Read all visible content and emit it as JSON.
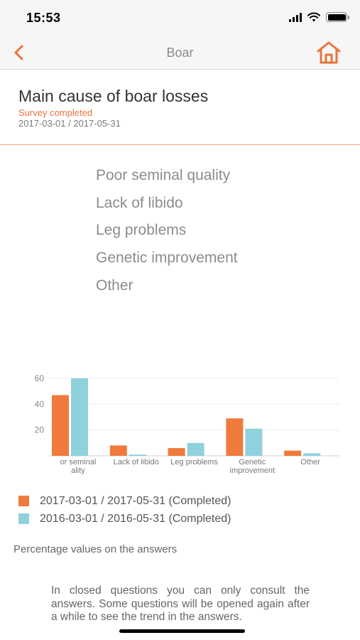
{
  "status_bar": {
    "time": "15:53",
    "battery_level": 1.0
  },
  "nav": {
    "title": "Boar",
    "back_icon": "chevron-left-icon",
    "home_icon": "home-icon"
  },
  "header": {
    "title": "Main cause of boar losses",
    "status": "Survey completed",
    "date_range": "2017-03-01 / 2017-05-31"
  },
  "answers": [
    "Poor seminal quality",
    "Lack of libido",
    "Leg problems",
    "Genetic improvement",
    "Other"
  ],
  "chart_data": {
    "type": "bar",
    "categories": [
      "Poor seminal quality",
      "Lack of libido",
      "Leg problems",
      "Genetic improvement",
      "Other"
    ],
    "tick_labels": [
      [
        "or seminal",
        "ality"
      ],
      [
        "Lack of libido"
      ],
      [
        "Leg problems"
      ],
      [
        "Genetic",
        "improvement"
      ],
      [
        "Other"
      ]
    ],
    "series": [
      {
        "name": "2017-03-01 / 2017-05-31 (Completed)",
        "color": "#ef7a3c",
        "values": [
          47,
          8,
          6,
          29,
          4
        ]
      },
      {
        "name": "2016-03-01 / 2016-05-31 (Completed)",
        "color": "#8fd1dd",
        "values": [
          60,
          1,
          10,
          21,
          2
        ]
      }
    ],
    "yticks": [
      20,
      40,
      60
    ],
    "ylim": [
      0,
      65
    ],
    "grid": true,
    "legend_position": "bottom"
  },
  "note": "Percentage values on the answers",
  "info": "In closed questions you can only consult the answers. Some questions will be opened again after a while to see the trend in the answers.",
  "colors": {
    "accent": "#e9743b",
    "series_1": "#ef7a3c",
    "series_2": "#8fd1dd"
  }
}
